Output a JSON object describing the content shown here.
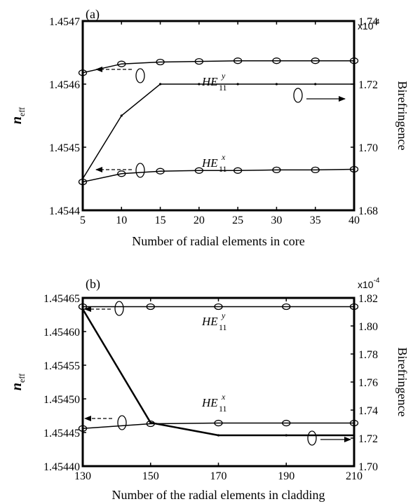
{
  "chart_data": [
    {
      "type": "line",
      "panel_label": "(a)",
      "xlabel": "Number of radial elements in core",
      "ylabel_left_main": "n",
      "ylabel_left_sub": "eff",
      "ylabel_right": "Birefringence",
      "right_multiplier": "x10",
      "right_multiplier_exp": "-4",
      "xlim": [
        5,
        40
      ],
      "ylim_left": [
        1.4544,
        1.4547
      ],
      "ylim_right": [
        1.68,
        1.74
      ],
      "x_ticks": [
        "5",
        "10",
        "15",
        "20",
        "25",
        "30",
        "35",
        "40"
      ],
      "y_ticks_left": [
        "1.4544",
        "1.4545",
        "1.4546",
        "1.4547"
      ],
      "y_ticks_right": [
        "1.68",
        "1.70",
        "1.72",
        "1.74"
      ],
      "grid": false,
      "series": [
        {
          "name": "HE11y",
          "axis": "left",
          "marker": "circle",
          "x": [
            5,
            10,
            15,
            20,
            25,
            30,
            35,
            40
          ],
          "y": [
            1.454618,
            1.454632,
            1.454635,
            1.454636,
            1.454637,
            1.454637,
            1.454637,
            1.454637
          ]
        },
        {
          "name": "HE11x",
          "axis": "left",
          "marker": "circle",
          "x": [
            5,
            10,
            15,
            20,
            25,
            30,
            35,
            40
          ],
          "y": [
            1.454445,
            1.454458,
            1.454462,
            1.454463,
            1.454463,
            1.454464,
            1.454464,
            1.454465
          ]
        },
        {
          "name": "Birefringence",
          "axis": "right",
          "marker": "dot",
          "x": [
            5,
            10,
            15,
            20,
            25,
            30,
            35,
            40
          ],
          "y": [
            1.69,
            1.71,
            1.72,
            1.72,
            1.72,
            1.72,
            1.72,
            1.72
          ]
        }
      ],
      "curve_labels": [
        {
          "base": "HE",
          "sub": "11",
          "sup": "y"
        },
        {
          "base": "HE",
          "sub": "11",
          "sup": "x"
        }
      ]
    },
    {
      "type": "line",
      "panel_label": "(b)",
      "xlabel": "Number of the radial elements in cladding",
      "ylabel_left_main": "n",
      "ylabel_left_sub": "eff",
      "ylabel_right": "Birefringence",
      "right_multiplier": "x10",
      "right_multiplier_exp": "-4",
      "xlim": [
        130,
        210
      ],
      "ylim_left": [
        1.4544,
        1.45465
      ],
      "ylim_right": [
        1.7,
        1.82
      ],
      "x_ticks": [
        "130",
        "150",
        "170",
        "190",
        "210"
      ],
      "y_ticks_left": [
        "1.45440",
        "1.45445",
        "1.45450",
        "1.45455",
        "1.45460",
        "1.45465"
      ],
      "y_ticks_right": [
        "1.70",
        "1.72",
        "1.74",
        "1.76",
        "1.78",
        "1.80",
        "1.82"
      ],
      "grid": false,
      "series": [
        {
          "name": "HE11y",
          "axis": "left",
          "marker": "circle",
          "x": [
            130,
            150,
            170,
            190,
            210
          ],
          "y": [
            1.454637,
            1.454637,
            1.454637,
            1.454637,
            1.454637
          ]
        },
        {
          "name": "HE11x",
          "axis": "left",
          "marker": "circle",
          "x": [
            130,
            150,
            170,
            190,
            210
          ],
          "y": [
            1.454456,
            1.454463,
            1.454464,
            1.454464,
            1.454464
          ]
        },
        {
          "name": "Birefringence",
          "axis": "right",
          "marker": "dot",
          "x": [
            130,
            150,
            170,
            190,
            210
          ],
          "y": [
            1.812,
            1.731,
            1.722,
            1.722,
            1.722
          ]
        }
      ],
      "curve_labels": [
        {
          "base": "HE",
          "sub": "11",
          "sup": "y"
        },
        {
          "base": "HE",
          "sub": "11",
          "sup": "x"
        }
      ]
    }
  ]
}
